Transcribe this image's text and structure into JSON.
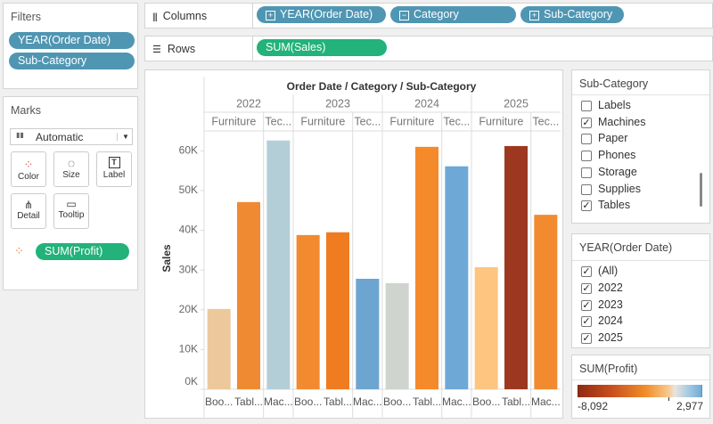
{
  "filters": {
    "title": "Filters",
    "pills": [
      "YEAR(Order Date)",
      "Sub-Category"
    ]
  },
  "marks": {
    "title": "Marks",
    "mark_type": "Automatic",
    "buttons": [
      "Color",
      "Size",
      "Label",
      "Detail",
      "Tooltip"
    ],
    "pill": "SUM(Profit)"
  },
  "columns": {
    "label": "Columns",
    "pills": [
      "YEAR(Order Date)",
      "Category",
      "Sub-Category"
    ]
  },
  "rows": {
    "label": "Rows",
    "pills": [
      "SUM(Sales)"
    ]
  },
  "chart_data": {
    "type": "bar",
    "title": "Order Date / Category / Sub-Category",
    "y_label": "Sales",
    "ylim": [
      0,
      65000
    ],
    "yticks": [
      {
        "value": 0,
        "label": "0K"
      },
      {
        "value": 10000,
        "label": "10K"
      },
      {
        "value": 20000,
        "label": "20K"
      },
      {
        "value": 30000,
        "label": "30K"
      },
      {
        "value": 40000,
        "label": "40K"
      },
      {
        "value": 50000,
        "label": "50K"
      },
      {
        "value": 60000,
        "label": "60K"
      }
    ],
    "panes": [
      {
        "year": "2022",
        "categories": [
          {
            "name": "Furniture",
            "subcategories": [
              "Boo...",
              "Tabl..."
            ],
            "values": [
              20200,
              47100
            ],
            "colors": [
              "#ecc89c",
              "#f08a32"
            ]
          },
          {
            "name": "Tec...",
            "subcategories": [
              "Mac..."
            ],
            "values": [
              62600
            ],
            "colors": [
              "#b4ced8"
            ]
          }
        ]
      },
      {
        "year": "2023",
        "categories": [
          {
            "name": "Furniture",
            "subcategories": [
              "Boo...",
              "Tabl..."
            ],
            "values": [
              38800,
              39500
            ],
            "colors": [
              "#f28a30",
              "#f07c22"
            ]
          },
          {
            "name": "Tec...",
            "subcategories": [
              "Mac..."
            ],
            "values": [
              27800
            ],
            "colors": [
              "#6ca5d0"
            ]
          }
        ]
      },
      {
        "year": "2024",
        "categories": [
          {
            "name": "Furniture",
            "subcategories": [
              "Boo...",
              "Tabl..."
            ],
            "values": [
              26700,
              61000
            ],
            "colors": [
              "#cfd4cf",
              "#f48a2a"
            ]
          },
          {
            "name": "Tec...",
            "subcategories": [
              "Mac..."
            ],
            "values": [
              56100
            ],
            "colors": [
              "#6ea8d6"
            ]
          }
        ]
      },
      {
        "year": "2025",
        "categories": [
          {
            "name": "Furniture",
            "subcategories": [
              "Boo...",
              "Tabl..."
            ],
            "values": [
              30700,
              61200
            ],
            "colors": [
              "#fdc57f",
              "#9c3820"
            ]
          },
          {
            "name": "Tec...",
            "subcategories": [
              "Mac..."
            ],
            "values": [
              43900
            ],
            "colors": [
              "#f28a30"
            ]
          }
        ]
      }
    ]
  },
  "subcategory_filter": {
    "title": "Sub-Category",
    "items": [
      {
        "label": "Labels",
        "checked": false
      },
      {
        "label": "Machines",
        "checked": true
      },
      {
        "label": "Paper",
        "checked": false
      },
      {
        "label": "Phones",
        "checked": false
      },
      {
        "label": "Storage",
        "checked": false
      },
      {
        "label": "Supplies",
        "checked": false
      },
      {
        "label": "Tables",
        "checked": true
      }
    ]
  },
  "year_filter": {
    "title": "YEAR(Order Date)",
    "items": [
      {
        "label": "(All)",
        "checked": true
      },
      {
        "label": "2022",
        "checked": true
      },
      {
        "label": "2023",
        "checked": true
      },
      {
        "label": "2024",
        "checked": true
      },
      {
        "label": "2025",
        "checked": true
      }
    ]
  },
  "profit_legend": {
    "title": "SUM(Profit)",
    "range": [
      {
        "value": -8092,
        "label": "-8,092"
      },
      {
        "value": 2977,
        "label": "2,977"
      }
    ]
  }
}
